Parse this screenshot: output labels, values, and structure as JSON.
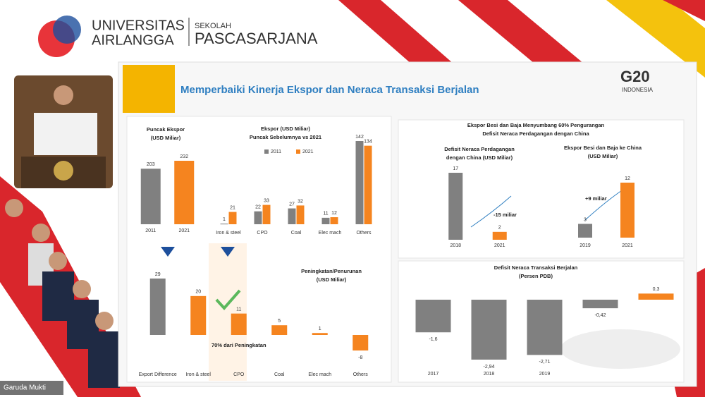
{
  "header": {
    "university_lines": [
      "UNIVERSITAS",
      "AIRLANGGA"
    ],
    "school_lines": [
      "SEKOLAH",
      "PASCASARJANA"
    ]
  },
  "g20": {
    "label": "G20",
    "country": "INDONESIA"
  },
  "participant": "Garuda Mukti",
  "slide": {
    "title": "Memperbaiki Kinerja Ekspor dan Neraca Transaksi Berjalan",
    "panel_title": [
      "Ekspor Besi dan Baja Menyumbang 60% Pengurangan",
      "Defisit Neraca Perdagangan dengan China"
    ]
  },
  "chart_data": [
    {
      "type": "bar",
      "title": [
        "Puncak Ekspor",
        "(USD Miliar)"
      ],
      "categories": [
        "2011",
        "2021"
      ],
      "values": [
        203,
        232
      ],
      "colors": [
        "#808080",
        "#f5841f"
      ]
    },
    {
      "type": "bar",
      "title": [
        "Ekspor (USD Miliar)",
        "Puncak Sebelumnya vs 2021"
      ],
      "categories": [
        "Iron & steel",
        "CPO",
        "Coal",
        "Elec mach",
        "Others"
      ],
      "series": [
        {
          "name": "2011",
          "color": "#808080",
          "values": [
            1,
            22,
            27,
            11,
            142
          ]
        },
        {
          "name": "2021",
          "color": "#f5841f",
          "values": [
            21,
            33,
            32,
            12,
            134
          ]
        }
      ]
    },
    {
      "type": "bar",
      "title": [
        "Peningkatan/Penurunan",
        "(USD Miliar)"
      ],
      "categories": [
        "Export Difference",
        "Iron & steel",
        "CPO",
        "Coal",
        "Elec mach",
        "Others"
      ],
      "values": [
        29,
        20,
        11,
        5,
        1,
        -8
      ],
      "colors": [
        "#808080",
        "#f5841f",
        "#f5841f",
        "#f5841f",
        "#f5841f",
        "#f5841f"
      ],
      "annotation": "70% dari Peningkatan"
    },
    {
      "type": "bar",
      "title": [
        "Defisit Neraca Perdagangan",
        "dengan China (USD Miliar)"
      ],
      "categories": [
        "2018",
        "2021"
      ],
      "values": [
        17,
        2
      ],
      "colors": [
        "#808080",
        "#f5841f"
      ],
      "annotation": "-15 miliar"
    },
    {
      "type": "bar",
      "title": [
        "Ekspor Besi dan Baja ke China",
        "(USD Miliar)"
      ],
      "categories": [
        "2019",
        "2021"
      ],
      "values": [
        3,
        12
      ],
      "colors": [
        "#808080",
        "#f5841f"
      ],
      "annotation": "+9 miliar"
    },
    {
      "type": "bar",
      "title": [
        "Defisit Neraca Transaksi Berjalan",
        "(Persen PDB)"
      ],
      "categories": [
        "2017",
        "2018",
        "2019",
        null,
        null
      ],
      "values": [
        -1.6,
        -2.94,
        -2.71,
        -0.42,
        0.3
      ],
      "value_labels": [
        "-1,6",
        "-2,94",
        "-2,71",
        "-0,42",
        "0,3"
      ],
      "colors": [
        "#808080",
        "#808080",
        "#808080",
        "#808080",
        "#f5841f"
      ]
    }
  ]
}
